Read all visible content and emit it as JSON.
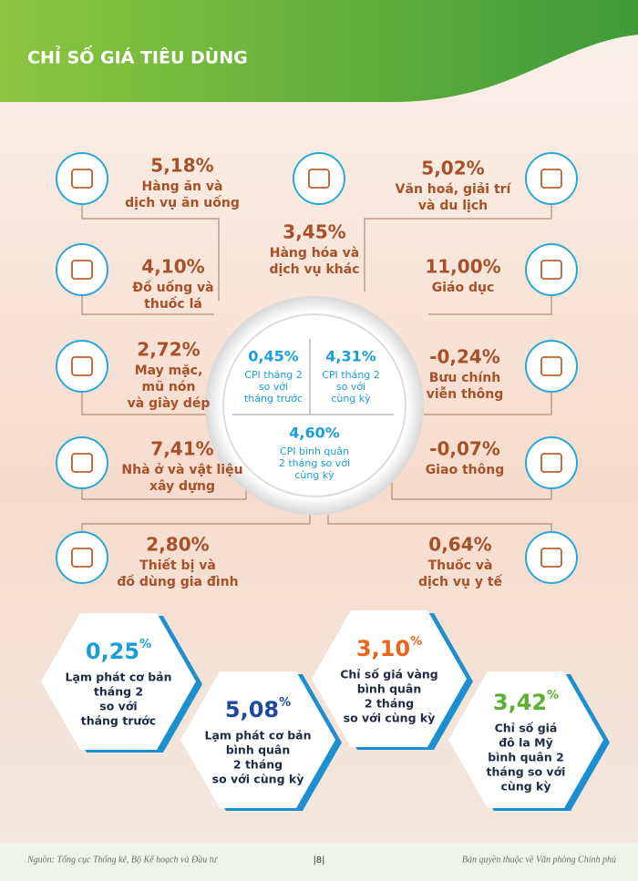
{
  "header": {
    "title": "CHỈ SỐ GIÁ TIÊU DÙNG"
  },
  "groups": [
    {
      "value": "5,18%",
      "lines": [
        "Hàng ăn và",
        "dịch vụ ăn uống"
      ]
    },
    {
      "value": "4,10%",
      "lines": [
        "Đồ uống và",
        "thuốc lá"
      ]
    },
    {
      "value": "2,72%",
      "lines": [
        "May mặc,",
        "mũ nón",
        "và giày dép"
      ]
    },
    {
      "value": "7,41%",
      "lines": [
        "Nhà ở và vật liệu",
        "xây dựng"
      ]
    },
    {
      "value": "2,80%",
      "lines": [
        "Thiết bị và",
        "đồ dùng gia đình"
      ]
    },
    {
      "value": "3,45%",
      "lines": [
        "Hàng hóa và",
        "dịch vụ khác"
      ]
    },
    {
      "value": "5,02%",
      "lines": [
        "Văn hoá, giải trí",
        "và du lịch"
      ]
    },
    {
      "value": "11,00%",
      "lines": [
        "Giáo dục"
      ]
    },
    {
      "value": "-0,24%",
      "lines": [
        "Bưu chính",
        "viễn thông"
      ]
    },
    {
      "value": "-0,07%",
      "lines": [
        "Giao thông"
      ]
    },
    {
      "value": "0,64%",
      "lines": [
        "Thuốc và",
        "dịch vụ y tế"
      ]
    }
  ],
  "cpi": [
    {
      "value": "0,45%",
      "lines": [
        "CPI tháng 2",
        "so với",
        "tháng trước"
      ]
    },
    {
      "value": "4,31%",
      "lines": [
        "CPI tháng 2",
        "so với",
        "cùng kỳ"
      ]
    },
    {
      "value": "4,60%",
      "lines": [
        "CPI bình quân",
        "2 tháng so với",
        "cùng kỳ"
      ]
    }
  ],
  "highlights": [
    {
      "value": "0,25",
      "unit": "%",
      "color": "#1a9ed9",
      "lines": [
        "Lạm phát cơ bản",
        "tháng 2",
        "so với",
        "tháng trước"
      ]
    },
    {
      "value": "5,08",
      "unit": "%",
      "color": "#1b4a9c",
      "lines": [
        "Lạm phát cơ bản",
        "bình quân",
        "2 tháng",
        "so với cùng kỳ"
      ]
    },
    {
      "value": "3,10",
      "unit": "%",
      "color": "#e8661c",
      "lines": [
        "Chỉ số giá vàng",
        "bình quân",
        "2 tháng",
        "so với cùng kỳ"
      ]
    },
    {
      "value": "3,42",
      "unit": "%",
      "color": "#5cb031",
      "lines": [
        "Chỉ số giá",
        "đô la Mỹ",
        "bình quân 2",
        "tháng so với",
        "cùng kỳ"
      ]
    }
  ],
  "footer": {
    "source": "Nguồn: Tổng cục Thống kê, Bộ Kế hoạch và Đầu tư",
    "page": "|8|",
    "copyright": "Bản quyền thuộc về Văn phòng Chính phủ"
  }
}
